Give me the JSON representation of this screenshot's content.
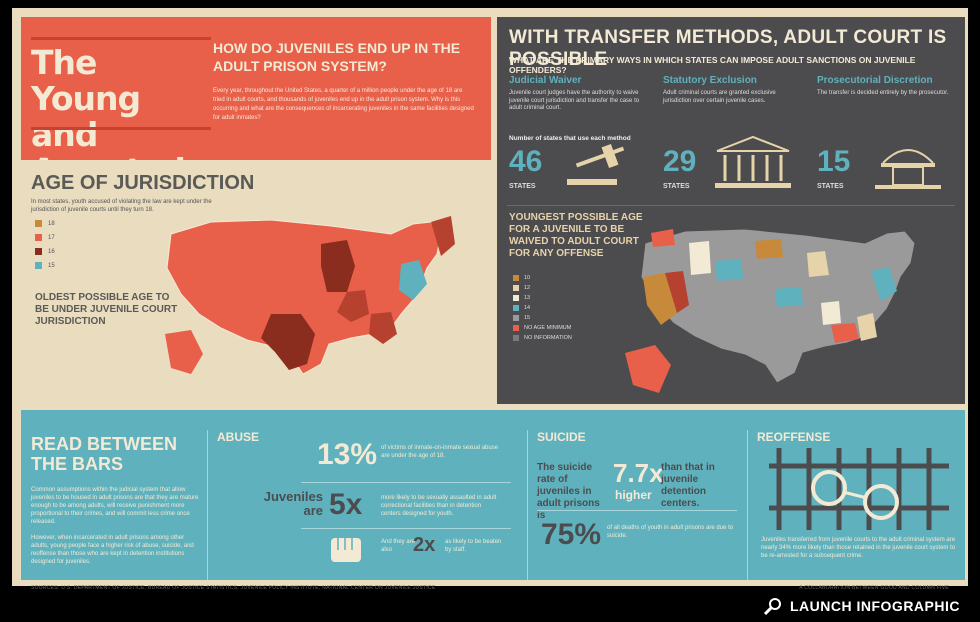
{
  "intro": {
    "title_line1": "The Young",
    "title_line2": "and Arrested",
    "subtitle": "HOW DO JUVENILES END UP IN THE ADULT PRISON SYSTEM?",
    "body": "Every year, throughout the United States, a quarter of a million people under the age of 18 are tried in adult courts, and thousands of juveniles end up in the adult prison system. Why is this occurring and what are the consequences of incarcerating juveniles in the same facilities designed for adult inmates?"
  },
  "age": {
    "heading": "AGE OF JURISDICTION",
    "description": "In most states, youth accused of violating the law are kept under the jurisdiction of juvenile courts until they turn 18.",
    "legend": [
      {
        "label": "18",
        "color": "#e8604a"
      },
      {
        "label": "17",
        "color": "#b5412e"
      },
      {
        "label": "16",
        "color": "#8a2c1e"
      },
      {
        "label": "15",
        "color": "#5fb2bd"
      }
    ],
    "note": "OLDEST POSSIBLE AGE TO BE UNDER JUVENILE COURT JURISDICTION"
  },
  "transfer": {
    "heading": "WITH TRANSFER METHODS, ADULT COURT IS POSSIBLE",
    "question": "WHAT ARE THE PRIMARY WAYS IN WHICH STATES CAN IMPOSE ADULT SANCTIONS ON JUVENILE OFFENDERS?",
    "count_label": "Number of states that use each method",
    "methods": [
      {
        "title": "Judicial Waiver",
        "desc": "Juvenile court judges have the authority to waive juvenile court jurisdiction and transfer the case to adult criminal court.",
        "count": "46",
        "unit": "STATES"
      },
      {
        "title": "Statutory Exclusion",
        "desc": "Adult criminal courts are granted exclusive jurisdiction over certain juvenile cases.",
        "count": "29",
        "unit": "STATES"
      },
      {
        "title": "Prosecutorial Discretion",
        "desc": "The transfer is decided entirely by the prosecutor.",
        "count": "15",
        "unit": "STATES"
      }
    ],
    "youngest_heading": "YOUNGEST POSSIBLE AGE FOR A JUVENILE TO BE WAIVED TO ADULT COURT FOR ANY OFFENSE",
    "legend": [
      {
        "label": "10",
        "color": "#c78a3a"
      },
      {
        "label": "12",
        "color": "#e6d3a9"
      },
      {
        "label": "13",
        "color": "#f3ead5"
      },
      {
        "label": "14",
        "color": "#5fb2bd"
      },
      {
        "label": "15",
        "color": "#9a9a9a"
      },
      {
        "label": "NO AGE MINIMUM",
        "color": "#e8604a"
      },
      {
        "label": "NO INFORMATION",
        "color": "#7a7a7a"
      }
    ]
  },
  "bars": {
    "heading_line1": "READ BETWEEN",
    "heading_line2": "THE BARS",
    "para1": "Common assumptions within the judicial system that allow juveniles to be housed in adult prisons are that they are mature enough to be among adults, will receive punishment more proportional to their crimes, and will commit less crime once released.",
    "para2": "However, when incarcerated in adult prisons among other adults, young people face a higher risk of abuse, suicide, and reoffense than those who are kept in detention institutions designed for juveniles.",
    "abuse": {
      "title": "ABUSE",
      "stat1": "13%",
      "stat1_text": "of victims of inmate-on-inmate sexual abuse are under the age of 18.",
      "juv_label": "Juveniles are",
      "stat2": "5x",
      "stat2_text": "more likely to be sexually assaulted in adult correctional facilities than in detention centers designed for youth.",
      "and_label": "And they are also",
      "stat3": "2x",
      "stat3_text": "as likely to be beaten by staff."
    },
    "suicide": {
      "title": "SUICIDE",
      "lead": "The suicide rate of juveniles in adult prisons is",
      "stat1": "7.7x",
      "stat1_word": "higher",
      "tail": "than that in juvenile detention centers.",
      "stat2": "75%",
      "stat2_text": "of all deaths of youth in adult prisons are due to suicide."
    },
    "reoffense": {
      "title": "REOFFENSE",
      "text": "Juveniles transferred from juvenile courts to the adult criminal system are nearly 34% more likely than those retained in the juvenile court system to be re-arrested for a subsequent crime."
    }
  },
  "footer": {
    "sources": "SOURCES: U.S. DEPARTMENT OF JUSTICE, BUREAU OF JUSTICE STATISTICS, JUVENILE POLICY INSTITUTE, NATIONAL CENTER ON JUVENILE JUSTICE",
    "credit": "A COLLABORATION BETWEEN GOOD AND COLUMN FIVE"
  },
  "launch": {
    "label": "LAUNCH INFOGRAPHIC",
    "icon": "search-icon"
  }
}
